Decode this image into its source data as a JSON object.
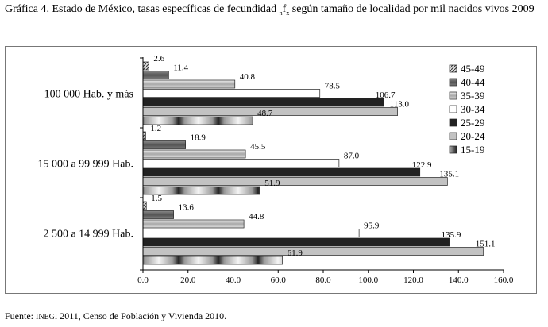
{
  "title": {
    "prefix": "Gráfica 4. Estado de México, tasas específicas de fecundidad ",
    "sub1": "n",
    "f": "f",
    "sub2": "x",
    "suffix": " según tamaño de localidad por mil nacidos vivos 2009"
  },
  "source": {
    "prefix": "Fuente: ",
    "org": "INEGI",
    "suffix": " 2011, Censo de Población y Vivienda 2010."
  },
  "colors": {
    "15-19": "#b8b8b8",
    "20-24": "#c2c2c2",
    "25-29": "#222222",
    "30-34": "#ffffff",
    "35-39": "#c8c8c8",
    "40-44": "#6e6e6e",
    "45-49": "#a0a0a0"
  },
  "chart_data": {
    "type": "bar",
    "orientation": "horizontal",
    "categories": [
      "100 000 Hab. y más",
      "15 000 a 99 999 Hab.",
      "2 500 a 14 999 Hab."
    ],
    "series": [
      {
        "name": "45-49",
        "values": [
          2.6,
          1.2,
          1.5
        ]
      },
      {
        "name": "40-44",
        "values": [
          11.4,
          18.9,
          13.6
        ]
      },
      {
        "name": "35-39",
        "values": [
          40.8,
          45.5,
          44.8
        ]
      },
      {
        "name": "30-34",
        "values": [
          78.5,
          87.0,
          95.9
        ]
      },
      {
        "name": "25-29",
        "values": [
          106.7,
          122.9,
          135.9
        ]
      },
      {
        "name": "20-24",
        "values": [
          113.0,
          135.1,
          151.1
        ]
      },
      {
        "name": "15-19",
        "values": [
          48.7,
          51.9,
          61.9
        ]
      }
    ],
    "value_labels": [
      [
        "2.6",
        "11.4",
        "40.8",
        "78.5",
        "106.7",
        "113.0",
        "48.7"
      ],
      [
        "1.2",
        "18.9",
        "45.5",
        "87.0",
        "122.9",
        "135.1",
        "51.9"
      ],
      [
        "1.5",
        "13.6",
        "44.8",
        "95.9",
        "135.9",
        "151.1",
        "61.9"
      ]
    ],
    "xlim": [
      0,
      160
    ],
    "xticks": [
      "0.0",
      "20.0",
      "40.0",
      "60.0",
      "80.0",
      "100.0",
      "120.0",
      "140.0",
      "160.0"
    ],
    "legend": [
      "45-49",
      "40-44",
      "35-39",
      "30-34",
      "25-29",
      "20-24",
      "15-19"
    ],
    "legend_position": "right",
    "grid": false
  }
}
